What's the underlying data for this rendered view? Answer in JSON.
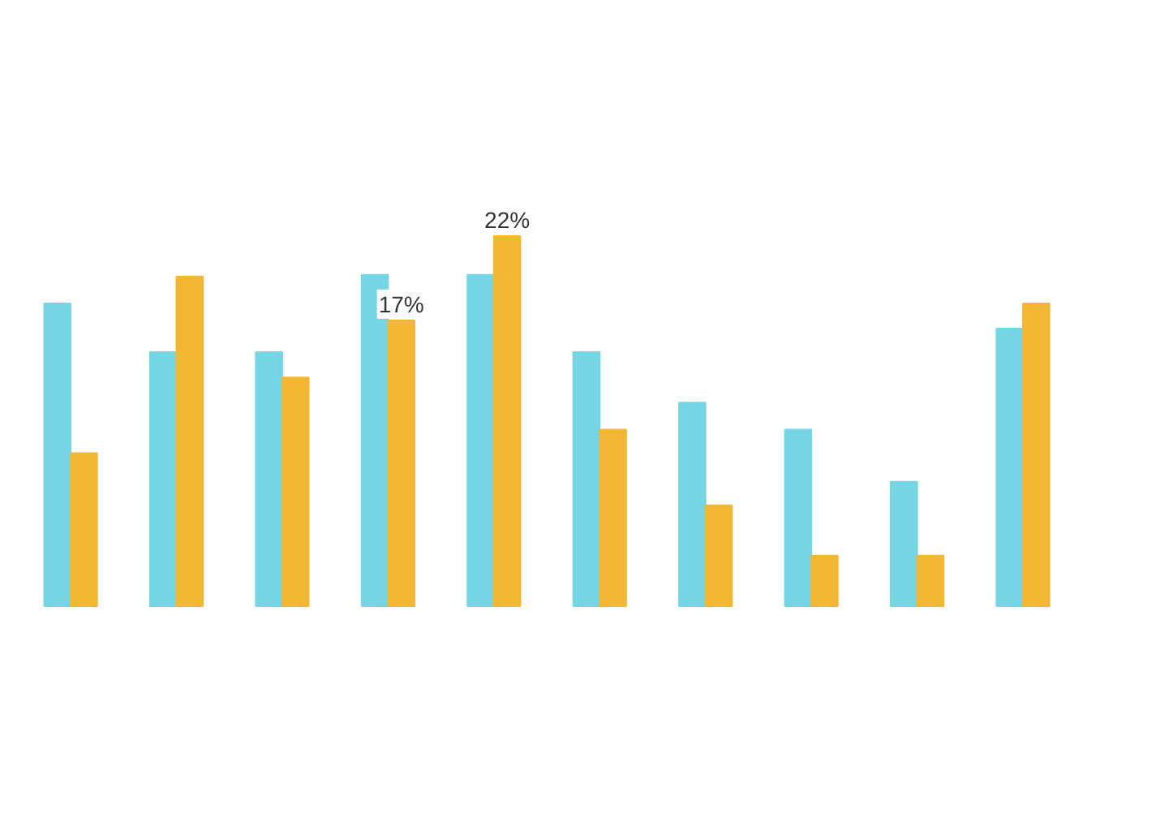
{
  "chart_data": {
    "type": "bar",
    "categories": [
      null,
      null,
      null,
      null,
      null,
      null,
      null,
      null,
      null,
      null
    ],
    "series": [
      {
        "color": "#76d5e5",
        "values": [
          18.0,
          15.1,
          15.1,
          19.7,
          19.7,
          15.1,
          12.1,
          10.5,
          7.4,
          16.5
        ]
      },
      {
        "color": "#f2b733",
        "values": [
          9.1,
          19.6,
          13.6,
          17,
          22,
          10.5,
          6.0,
          3.0,
          3.0,
          18.0
        ],
        "value_labels": [
          null,
          null,
          null,
          "17%",
          "22%",
          null,
          null,
          null,
          null,
          null
        ]
      }
    ],
    "ylim": [
      -13.9,
      36
    ],
    "tick_labels": false,
    "grid": false
  }
}
